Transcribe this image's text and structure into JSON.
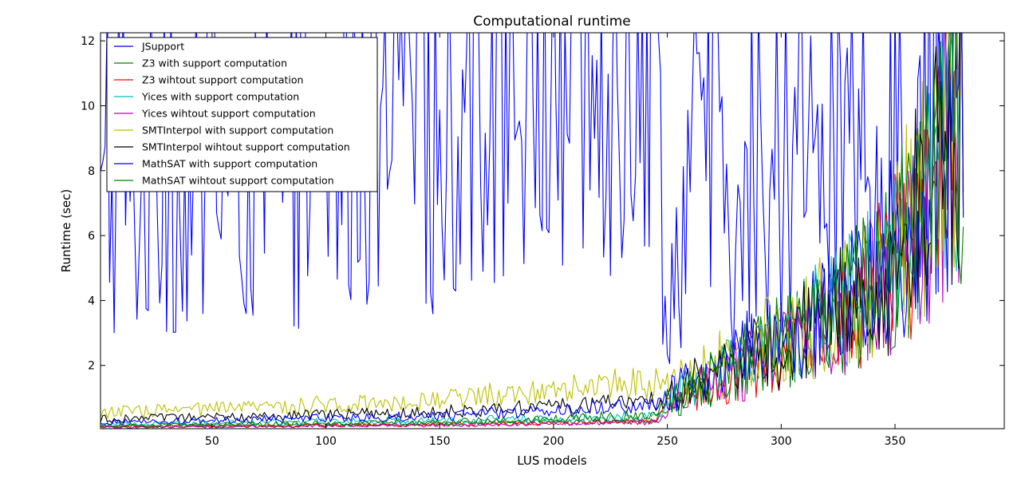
{
  "chart_data": {
    "type": "line",
    "title": "Computational runtime",
    "xlabel": "LUS models",
    "ylabel": "Runtime (sec)",
    "xlim": [
      1,
      398
    ],
    "ylim": [
      0.05,
      12.25
    ],
    "xticks": [
      50,
      100,
      150,
      200,
      250,
      300,
      350
    ],
    "yticks": [
      2,
      4,
      6,
      8,
      10,
      12
    ],
    "grid": false,
    "legend_position": "top-left",
    "x_key_points": [
      1,
      50,
      100,
      150,
      200,
      245,
      250,
      260,
      280,
      300,
      320,
      340,
      350,
      360,
      370,
      380
    ],
    "series": [
      {
        "name": "JSupport",
        "color": "#0000ff",
        "values": [
          5.5,
          6.5,
          7.0,
          8.0,
          9.0,
          10.0,
          3.0,
          7.0,
          5.0,
          6.0,
          7.5,
          5.0,
          6.0,
          8.0,
          9.5,
          12.0
        ]
      },
      {
        "name": "Z3 with support computation",
        "color": "#008000",
        "values": [
          0.12,
          0.14,
          0.17,
          0.2,
          0.25,
          0.3,
          0.7,
          1.2,
          1.9,
          2.6,
          3.4,
          4.4,
          5.4,
          6.6,
          8.1,
          10.0
        ]
      },
      {
        "name": "Z3 wihtout support computation",
        "color": "#ff0000",
        "values": [
          0.11,
          0.13,
          0.15,
          0.18,
          0.22,
          0.28,
          0.65,
          1.1,
          1.8,
          2.5,
          3.3,
          4.3,
          5.3,
          6.5,
          8.0,
          9.8
        ]
      },
      {
        "name": "Yices with support computation",
        "color": "#00bfbf",
        "values": [
          0.2,
          0.23,
          0.27,
          0.32,
          0.38,
          0.45,
          0.8,
          1.3,
          2.0,
          2.7,
          3.5,
          4.5,
          5.5,
          6.7,
          8.2,
          10.1
        ]
      },
      {
        "name": "Yices wihtout support computation",
        "color": "#bf00bf",
        "values": [
          0.09,
          0.11,
          0.13,
          0.16,
          0.2,
          0.25,
          0.6,
          1.1,
          1.8,
          2.5,
          3.3,
          4.3,
          5.3,
          6.5,
          8.0,
          9.8
        ]
      },
      {
        "name": "SMTInterpol with support computation",
        "color": "#bfbf00",
        "values": [
          0.55,
          0.65,
          0.8,
          0.95,
          1.3,
          1.5,
          1.2,
          1.6,
          2.2,
          2.9,
          3.6,
          4.6,
          5.6,
          6.8,
          8.3,
          10.2
        ]
      },
      {
        "name": "SMTInterpol wihtout support computation",
        "color": "#000000",
        "values": [
          0.35,
          0.4,
          0.48,
          0.58,
          0.75,
          0.9,
          1.0,
          1.4,
          2.0,
          2.7,
          3.4,
          4.4,
          5.4,
          6.6,
          8.1,
          10.0
        ]
      },
      {
        "name": "MathSAT with support computation",
        "color": "#0000ff",
        "values": [
          0.25,
          0.3,
          0.38,
          0.45,
          0.6,
          0.8,
          1.0,
          1.5,
          2.2,
          2.9,
          3.6,
          4.6,
          5.6,
          6.8,
          8.3,
          10.2
        ]
      },
      {
        "name": "MathSAT wihtout support computation",
        "color": "#008000",
        "values": [
          0.15,
          0.18,
          0.22,
          0.26,
          0.35,
          0.5,
          0.9,
          1.4,
          2.1,
          2.8,
          3.5,
          4.5,
          5.5,
          6.7,
          8.2,
          10.1
        ]
      }
    ]
  }
}
